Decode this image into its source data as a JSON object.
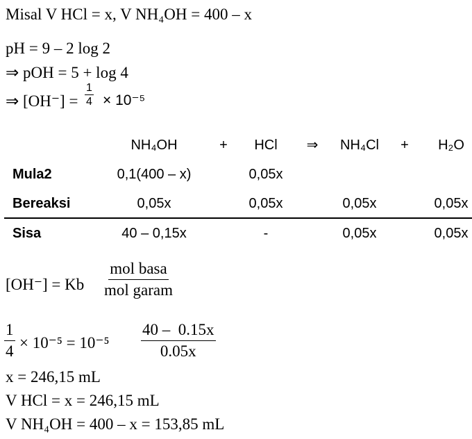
{
  "intro": "Misal V HCl = x, V NH₄OH = 400 – x",
  "steps": [
    "pH = 9 – 2 log 2",
    "⇒ pOH = 5 + log 4"
  ],
  "oh_line": {
    "prefix": "⇒ [OH⁻] =",
    "numerator": "1",
    "denominator": "4",
    "suffix": "× 10⁻⁵"
  },
  "table": {
    "header": {
      "nh4oh": "NH₄OH",
      "plus1": "+",
      "hcl": "HCl",
      "arrow": "⇒",
      "nh4cl": "NH₄Cl",
      "plus2": "+",
      "h2o": "H₂O"
    },
    "rows": [
      {
        "label": "Mula2",
        "nh4oh": "0,1(400 – x)",
        "hcl": "0,05x"
      },
      {
        "label": "Bereaksi",
        "nh4oh": "0,05x",
        "hcl": "0,05x",
        "nh4cl": "0,05x",
        "h2o": "0,05x"
      },
      {
        "label": "Sisa",
        "nh4oh": "40 – 0,15x",
        "hcl": "-",
        "nh4cl": "0,05x",
        "h2o": "0,05x"
      }
    ]
  },
  "formula": {
    "lhs": "[OH⁻] = Kb",
    "numerator": "mol basa",
    "denominator": "mol garam"
  },
  "equation": {
    "lhs_numerator": "1",
    "lhs_denominator": "4",
    "middle": "× 10⁻⁵ = 10⁻⁵",
    "rhs_numerator": "40 –  0.15x",
    "rhs_denominator": "0.05x"
  },
  "results": [
    "x = 246,15 mL",
    "V HCl = x = 246,15 mL",
    "V NH₄OH = 400 – x = 153,85 mL"
  ]
}
